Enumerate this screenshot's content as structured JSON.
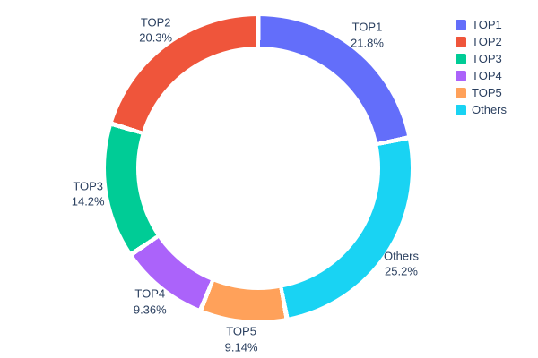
{
  "chart_data": {
    "type": "pie",
    "hole": 0.8,
    "title": "",
    "categories": [
      "TOP1",
      "TOP2",
      "TOP3",
      "TOP4",
      "TOP5",
      "Others"
    ],
    "values": [
      21.8,
      20.3,
      14.2,
      9.36,
      9.14,
      25.2
    ],
    "labels_text": [
      "21.8%",
      "20.3%",
      "14.2%",
      "9.36%",
      "9.14%",
      "25.2%"
    ],
    "colors": [
      "#636EFA",
      "#EF553B",
      "#00CC96",
      "#AB63FA",
      "#FFA15A",
      "#19D3F3"
    ],
    "clockwise_order": [
      "TOP1",
      "Others",
      "TOP5",
      "TOP4",
      "TOP3",
      "TOP2"
    ],
    "legend_position": "top-right",
    "text_color": "#2a3f5f",
    "background_color": "#ffffff"
  }
}
